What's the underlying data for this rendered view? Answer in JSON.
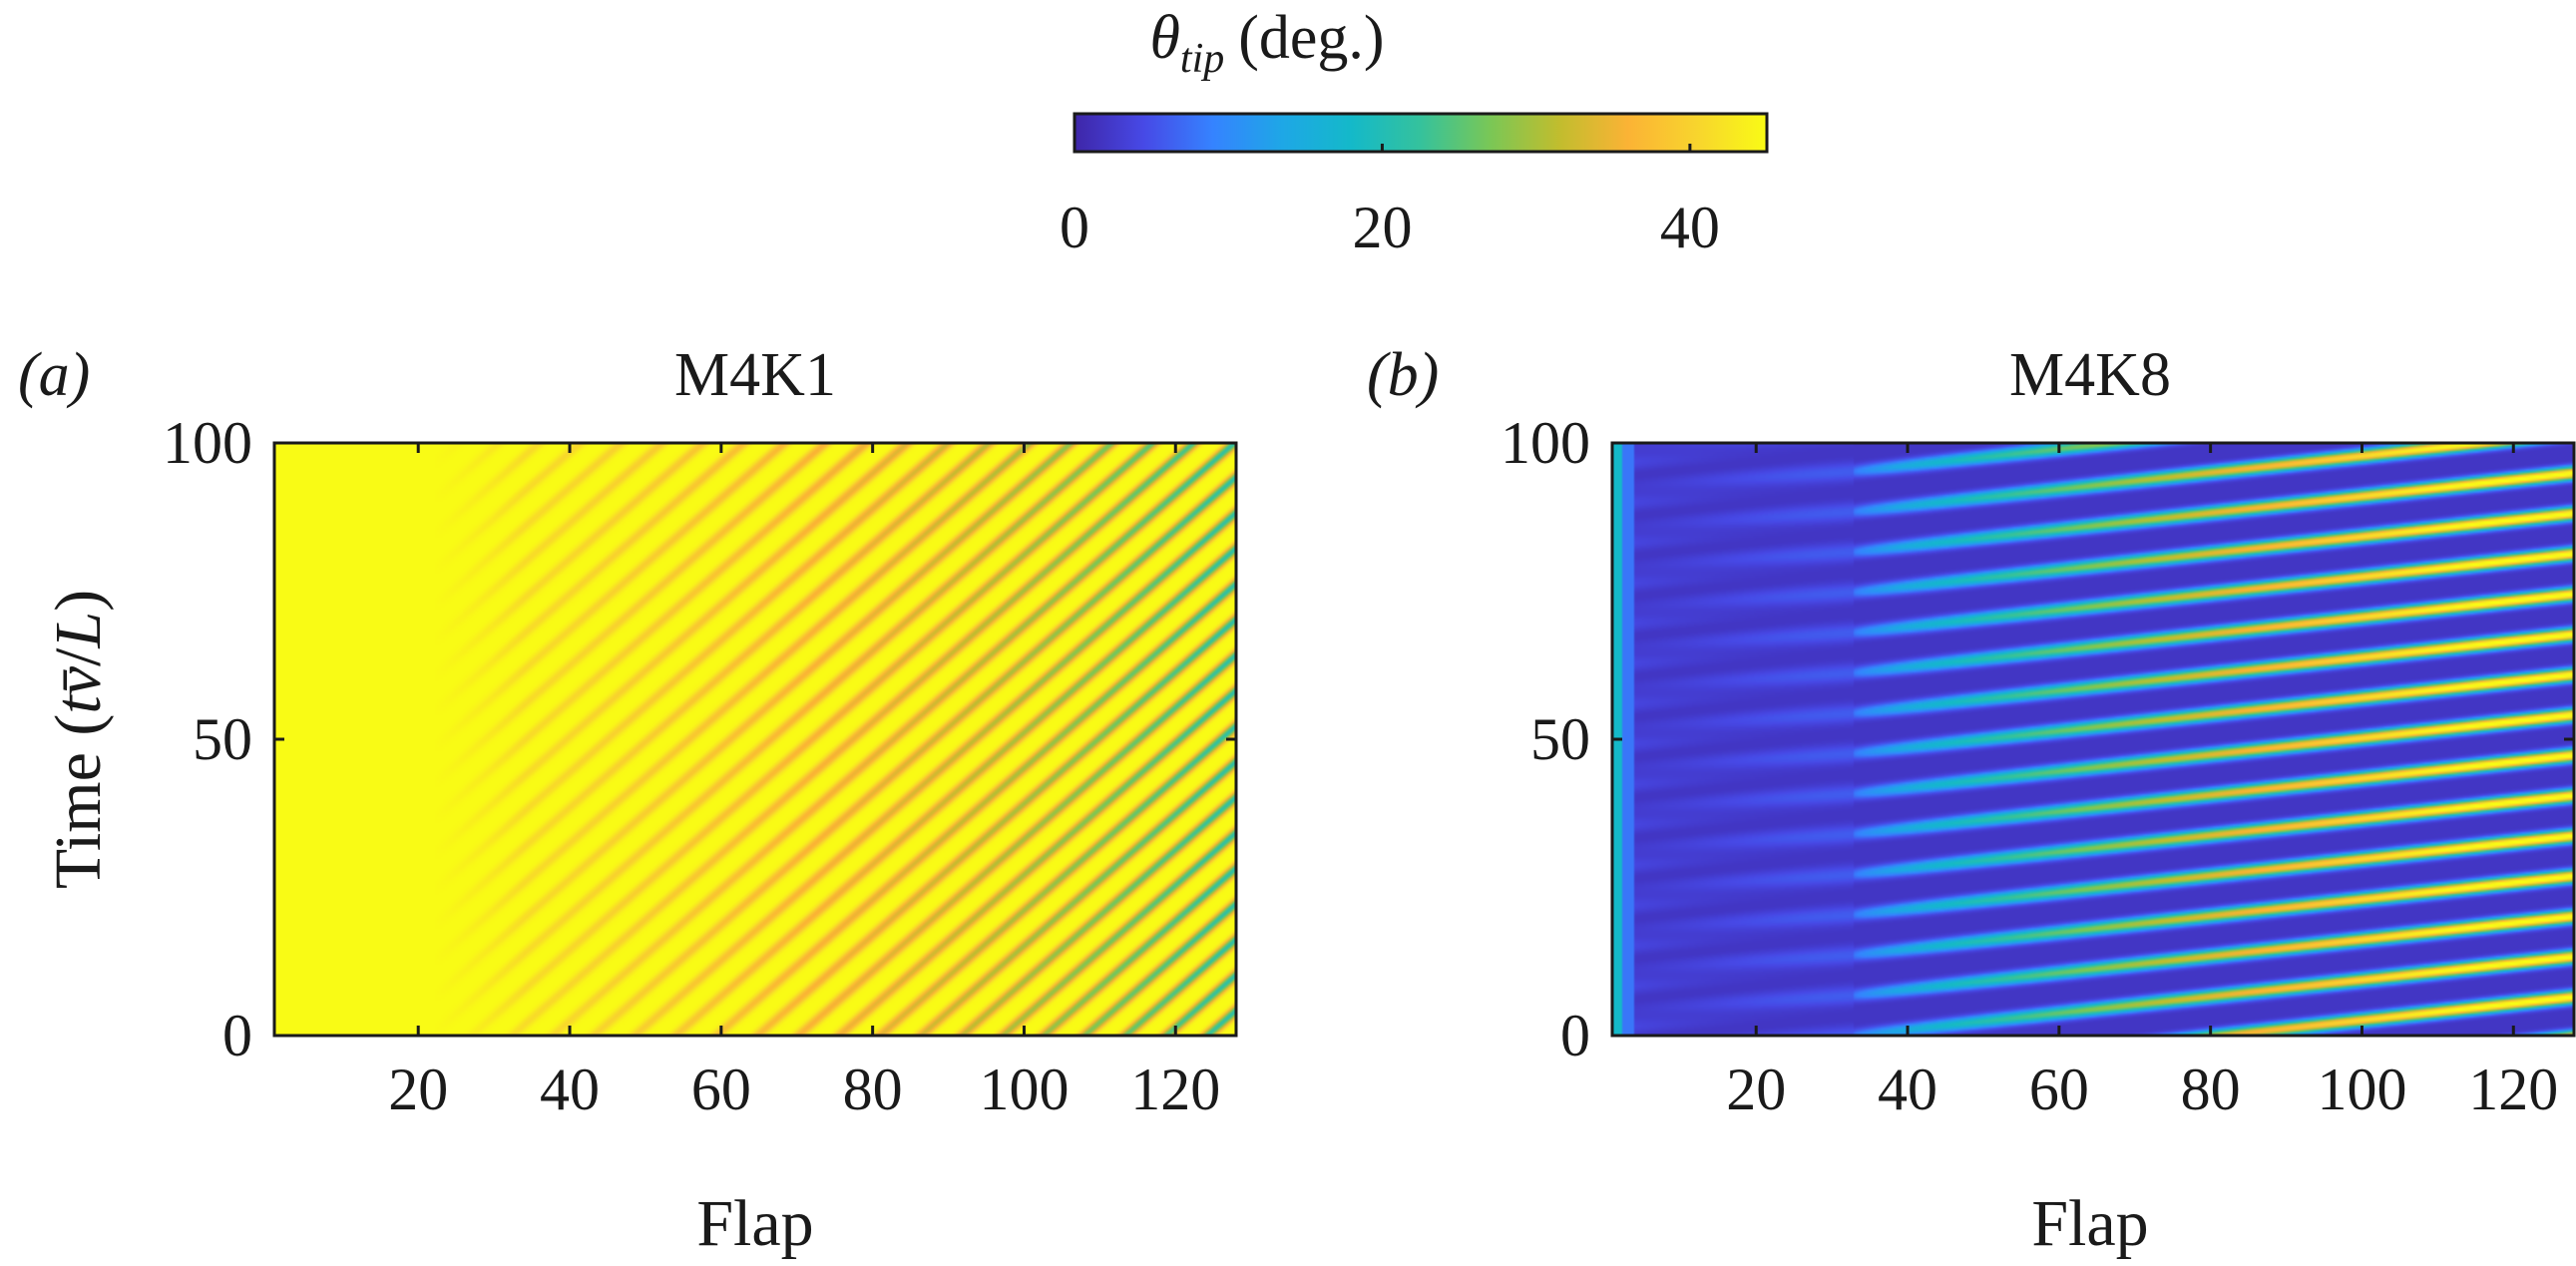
{
  "colorbar": {
    "label_main": "θ",
    "label_sub": "tip",
    "label_unit": "(deg.)",
    "min": 0,
    "max": 45,
    "ticks": [
      0,
      20,
      40
    ],
    "colormap": [
      "#3e26a8",
      "#4749e6",
      "#3583ff",
      "#1ea7e6",
      "#14b9c9",
      "#35c29c",
      "#7ac756",
      "#c1bd2e",
      "#fbb335",
      "#f8d52d",
      "#f9fb15"
    ]
  },
  "chart_data": [
    {
      "type": "heatmap",
      "panel": "(a)",
      "title": "M4K1",
      "xlabel": "Flap",
      "ylabel": "Time (t̅v/L)",
      "ylabel_parts": [
        "Time (",
        "t",
        "v̄",
        "/",
        "L",
        ")"
      ],
      "xlim": [
        1,
        128
      ],
      "ylim": [
        0,
        100
      ],
      "xticks": [
        20,
        40,
        60,
        80,
        100,
        120
      ],
      "yticks": [
        0,
        50,
        100
      ],
      "pattern": {
        "description": "uniform high tip angle on the left, diagonal travelling stripes on the right",
        "base_value": 45,
        "stripe_onset_flap": 22,
        "stripe_spacing_flaps": 5.4,
        "stripe_slope_flaps_per_time": 0.9,
        "min_value_at_right_edge": 24
      }
    },
    {
      "type": "heatmap",
      "panel": "(b)",
      "title": "M4K8",
      "xlabel": "Flap",
      "ylabel": "",
      "xlim": [
        1,
        128
      ],
      "ylim": [
        0,
        100
      ],
      "xticks": [
        20,
        40,
        60,
        80,
        100,
        120
      ],
      "yticks": [
        0,
        50,
        100
      ],
      "pattern": {
        "description": "near-zero tip angle with diagonal travelling stripes that grow in amplitude with flap index",
        "base_value": 2,
        "stripe_onset_flap": 33,
        "stripe_period_time": 6.8,
        "stripe_slope_time_per_flap": 0.14,
        "max_value_at_right_edge": 45
      }
    }
  ]
}
